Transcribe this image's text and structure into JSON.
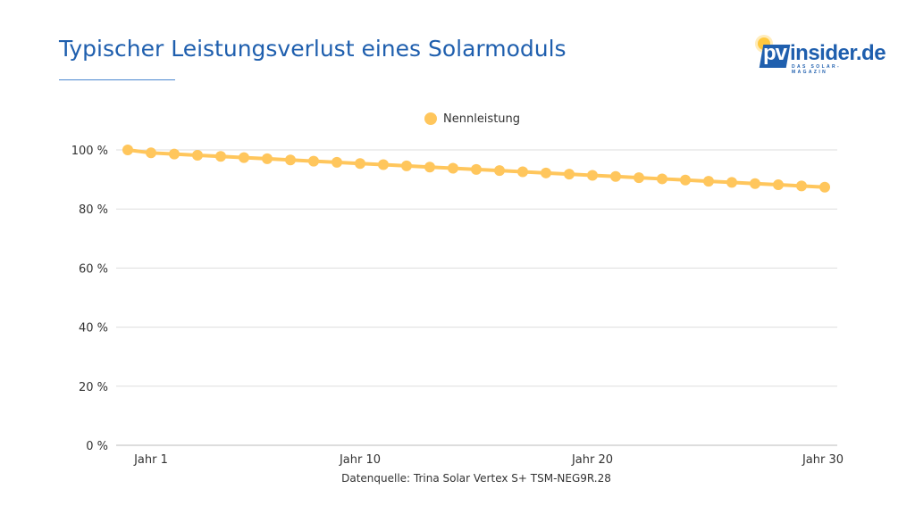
{
  "header": {
    "title": "Typischer Leistungsverlust eines Solarmoduls"
  },
  "logo": {
    "text_pv": "pv",
    "text_rest": "insider.de",
    "tagline": "DAS SOLAR-MAGAZIN"
  },
  "footer": {
    "source": "Datenquelle: Trina Solar Vertex S+ TSM-NEG9R.28"
  },
  "chart_data": {
    "type": "line",
    "title": "",
    "xlabel": "",
    "ylabel": "",
    "x": [
      0,
      1,
      2,
      3,
      4,
      5,
      6,
      7,
      8,
      9,
      10,
      11,
      12,
      13,
      14,
      15,
      16,
      17,
      18,
      19,
      20,
      21,
      22,
      23,
      24,
      25,
      26,
      27,
      28,
      29,
      30
    ],
    "x_tick_labels": [
      {
        "x": 1,
        "label": "Jahr 1"
      },
      {
        "x": 10,
        "label": "Jahr 10"
      },
      {
        "x": 20,
        "label": "Jahr 20"
      },
      {
        "x": 30,
        "label": "Jahr 30"
      }
    ],
    "series": [
      {
        "name": "Nennleistung",
        "color": "#ffc65c",
        "values": [
          100,
          99.0,
          98.6,
          98.2,
          97.8,
          97.4,
          97.0,
          96.6,
          96.2,
          95.8,
          95.4,
          95.0,
          94.6,
          94.2,
          93.8,
          93.4,
          93.0,
          92.6,
          92.2,
          91.8,
          91.4,
          91.0,
          90.6,
          90.2,
          89.8,
          89.4,
          89.0,
          88.6,
          88.2,
          87.8,
          87.4
        ]
      }
    ],
    "ylim": [
      0,
      100
    ],
    "y_ticks": [
      0,
      20,
      40,
      60,
      80,
      100
    ],
    "y_tick_labels": [
      "0 %",
      "20 %",
      "40 %",
      "60 %",
      "80 %",
      "100 %"
    ],
    "grid": true,
    "legend_position": "top"
  }
}
